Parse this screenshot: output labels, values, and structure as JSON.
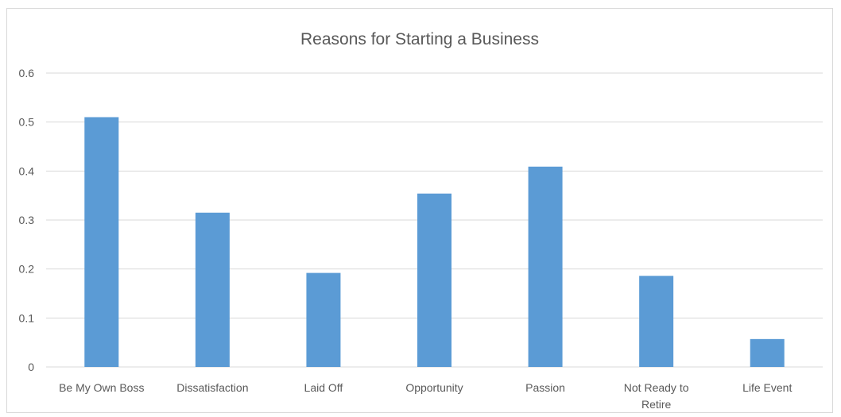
{
  "chart_data": {
    "type": "bar",
    "title": "Reasons for Starting a Business",
    "xlabel": "",
    "ylabel": "",
    "ylim": [
      0,
      0.6
    ],
    "yticks": [
      "0",
      "0.1",
      "0.2",
      "0.3",
      "0.4",
      "0.5",
      "0.6"
    ],
    "grid": true,
    "legend": "none",
    "bar_color": "#5b9bd5",
    "categories": [
      [
        "Be My Own Boss"
      ],
      [
        "Dissatisfaction"
      ],
      [
        "Laid Off"
      ],
      [
        "Opportunity"
      ],
      [
        "Passion"
      ],
      [
        "Not Ready to",
        "Retire"
      ],
      [
        "Life Event"
      ]
    ],
    "values": [
      0.51,
      0.315,
      0.192,
      0.354,
      0.409,
      0.186,
      0.057
    ]
  }
}
